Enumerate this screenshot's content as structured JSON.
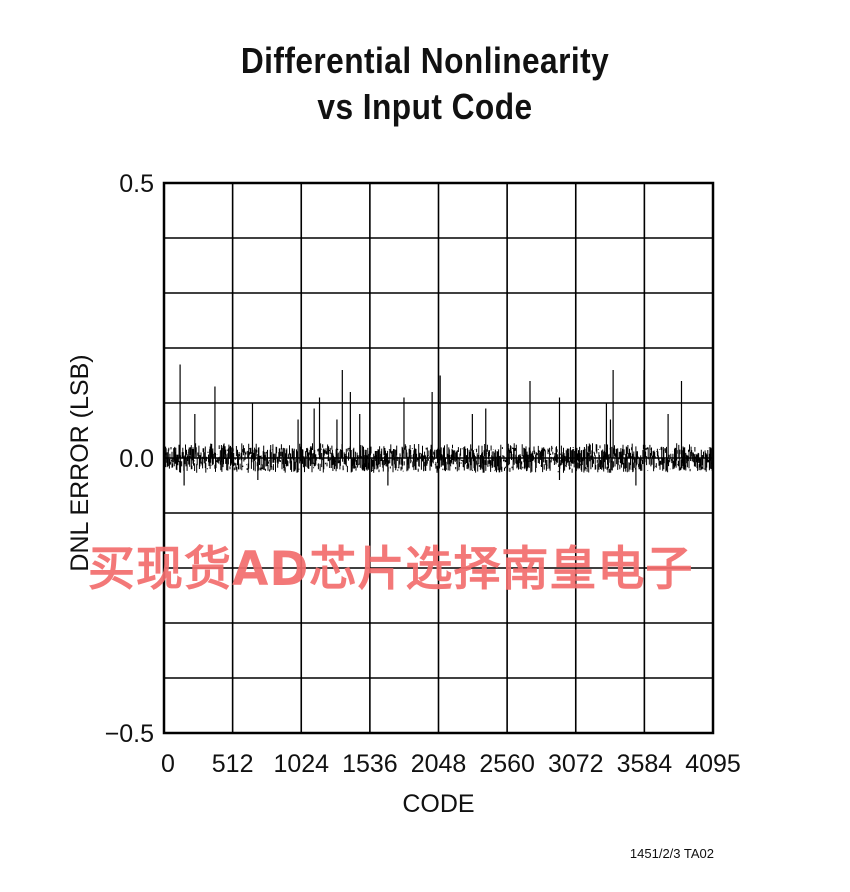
{
  "chart_data": {
    "type": "line",
    "title": "Differential Nonlinearity",
    "subtitle": "vs Input Code",
    "xlabel": "CODE",
    "ylabel": "DNL ERROR (LSB)",
    "xlim": [
      0,
      4095
    ],
    "ylim": [
      -0.5,
      0.5
    ],
    "x_ticks": [
      0,
      512,
      1024,
      1536,
      2048,
      2560,
      3072,
      3584,
      4095
    ],
    "x_tick_labels": [
      "0",
      "512",
      "1024",
      "1536",
      "2048",
      "2560",
      "3072",
      "3584",
      "4095"
    ],
    "y_tick_labels": [
      "0.5",
      "0.0",
      "−0.5"
    ],
    "y_tick_values": [
      0.5,
      0.0,
      -0.5
    ],
    "grid": true,
    "series": [
      {
        "noise_band": [
          -0.03,
          0.03
        ],
        "spikes": [
          {
            "x": 120,
            "y": 0.17
          },
          {
            "x": 230,
            "y": 0.08
          },
          {
            "x": 380,
            "y": 0.13
          },
          {
            "x": 660,
            "y": 0.1
          },
          {
            "x": 1000,
            "y": 0.07
          },
          {
            "x": 1120,
            "y": 0.09
          },
          {
            "x": 1160,
            "y": 0.11
          },
          {
            "x": 1290,
            "y": 0.07
          },
          {
            "x": 1330,
            "y": 0.16
          },
          {
            "x": 1390,
            "y": 0.12
          },
          {
            "x": 1460,
            "y": 0.08
          },
          {
            "x": 1790,
            "y": 0.11
          },
          {
            "x": 2000,
            "y": 0.12
          },
          {
            "x": 2060,
            "y": 0.15
          },
          {
            "x": 2300,
            "y": 0.08
          },
          {
            "x": 2400,
            "y": 0.09
          },
          {
            "x": 2730,
            "y": 0.14
          },
          {
            "x": 2950,
            "y": 0.11
          },
          {
            "x": 3300,
            "y": 0.1
          },
          {
            "x": 3330,
            "y": 0.07
          },
          {
            "x": 3350,
            "y": 0.16
          },
          {
            "x": 3580,
            "y": 0.16
          },
          {
            "x": 3860,
            "y": 0.14
          },
          {
            "x": 3760,
            "y": 0.08
          }
        ],
        "dips": [
          {
            "x": 150,
            "y": -0.05
          },
          {
            "x": 700,
            "y": -0.04
          },
          {
            "x": 1670,
            "y": -0.05
          },
          {
            "x": 2950,
            "y": -0.04
          },
          {
            "x": 3520,
            "y": -0.05
          }
        ]
      }
    ]
  },
  "figure_id": "1451/2/3 TA02",
  "watermark": "买现货AD芯片选择南皇电子",
  "colors": {
    "plot": "#000000",
    "grid": "#000000",
    "watermark": "#f26d6d"
  }
}
